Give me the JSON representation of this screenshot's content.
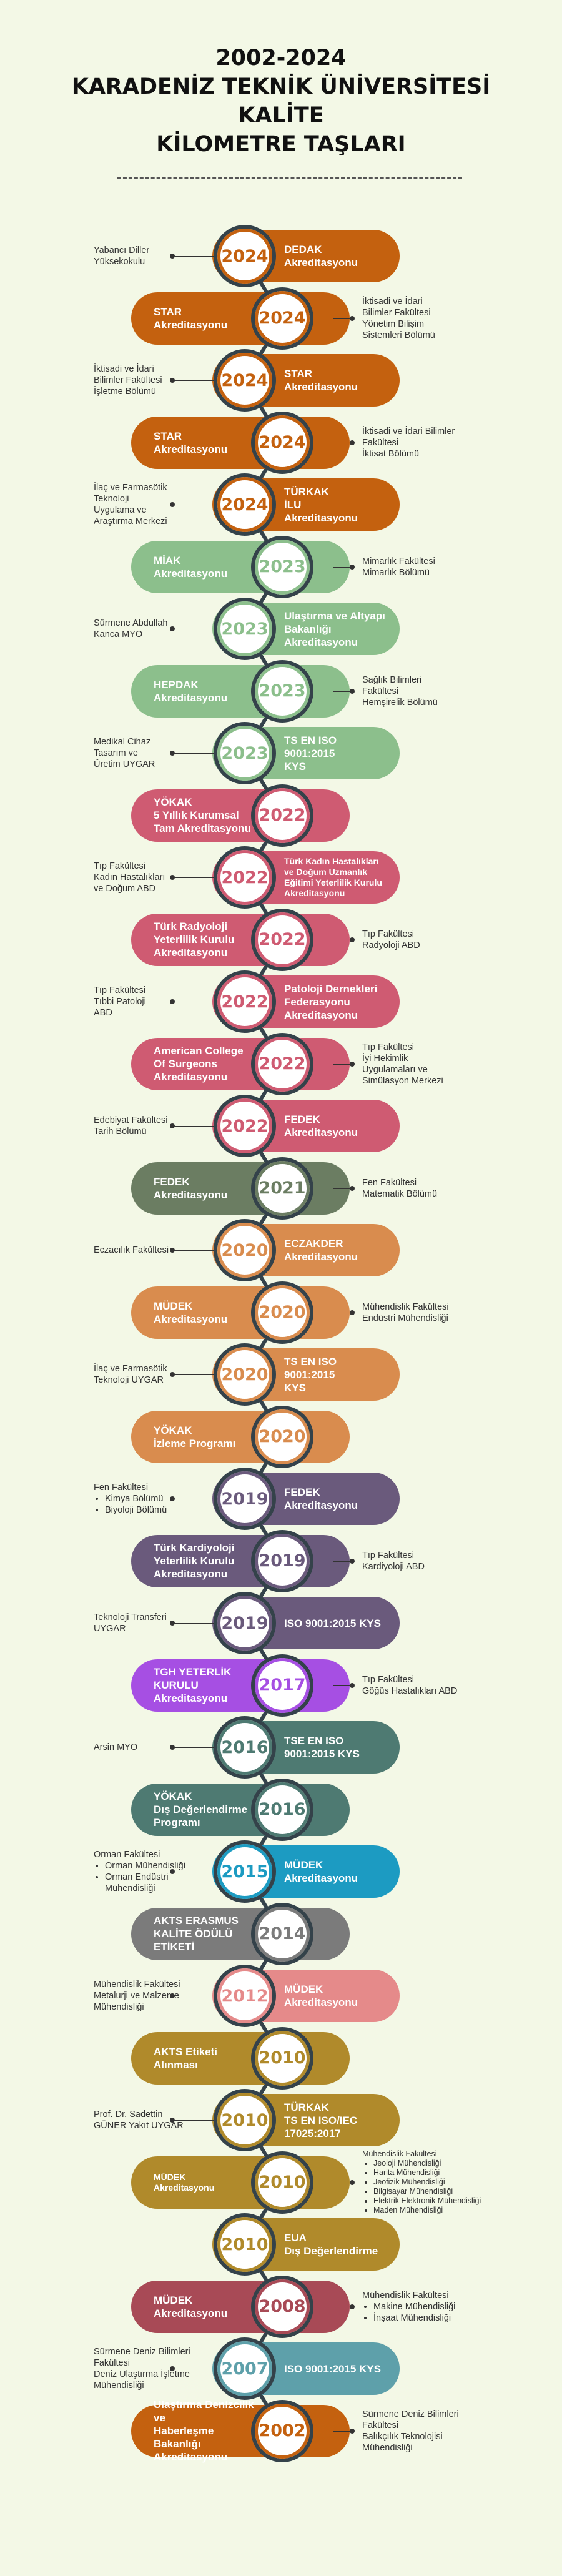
{
  "title": {
    "line1": "2002-2024",
    "line2": "KARADENİZ TEKNİK ÜNİVERSİTESİ",
    "line3": "KALİTE",
    "line4": "KİLOMETRE TAŞLARI"
  },
  "entries": [
    {
      "side": "right",
      "year": "2024",
      "label": "DEDAK\nAkreditasyonu",
      "color": "#c4610f",
      "desc": [
        "Yabancı Diller",
        "Yüksekokulu"
      ],
      "list": []
    },
    {
      "side": "left",
      "year": "2024",
      "label": "STAR\nAkreditasyonu",
      "color": "#c4610f",
      "desc": [
        "İktisadi ve İdari",
        "Bilimler Fakültesi",
        "Yönetim Bilişim",
        "Sistemleri Bölümü"
      ],
      "list": []
    },
    {
      "side": "right",
      "year": "2024",
      "label": "STAR\nAkreditasyonu",
      "color": "#c4610f",
      "desc": [
        "İktisadi ve İdari",
        "Bilimler Fakültesi",
        "İşletme Bölümü"
      ],
      "list": []
    },
    {
      "side": "left",
      "year": "2024",
      "label": "STAR\nAkreditasyonu",
      "color": "#c4610f",
      "desc": [
        "İktisadi ve İdari Bilimler",
        "Fakültesi",
        "İktisat Bölümü"
      ],
      "list": []
    },
    {
      "side": "right",
      "year": "2024",
      "label": "TÜRKAK\nİLU\nAkreditasyonu",
      "color": "#c4610f",
      "desc": [
        "İlaç ve Farmasötik",
        "Teknoloji",
        "Uygulama ve",
        "Araştırma Merkezi"
      ],
      "list": []
    },
    {
      "side": "left",
      "year": "2023",
      "label": "MİAK\nAkreditasyonu",
      "color": "#8cbf8c",
      "desc": [
        "Mimarlık Fakültesi",
        "Mimarlık Bölümü"
      ],
      "list": []
    },
    {
      "side": "right",
      "year": "2023",
      "label": "Ulaştırma ve Altyapı\nBakanlığı\nAkreditasyonu",
      "color": "#8cbf8c",
      "desc": [
        "Sürmene Abdullah",
        "Kanca MYO"
      ],
      "list": []
    },
    {
      "side": "left",
      "year": "2023",
      "label": "HEPDAK\nAkreditasyonu",
      "color": "#8cbf8c",
      "desc": [
        "Sağlık Bilimleri",
        "Fakültesi",
        "Hemşirelik Bölümü"
      ],
      "list": []
    },
    {
      "side": "right",
      "year": "2023",
      "label": "TS EN ISO 9001:2015\nKYS",
      "color": "#8cbf8c",
      "desc": [
        "Medikal Cihaz",
        "Tasarım ve",
        "Üretim UYGAR"
      ],
      "list": []
    },
    {
      "side": "left",
      "year": "2022",
      "label": "YÖKAK\n5 Yıllık Kurumsal\nTam Akreditasyonu",
      "color": "#cf5b72",
      "desc": [],
      "list": []
    },
    {
      "side": "right",
      "year": "2022",
      "label": "Türk Kadın Hastalıkları\nve Doğum Uzmanlık\nEğitimi Yeterlilik Kurulu\nAkreditasyonu",
      "color": "#cf5b72",
      "small": true,
      "desc": [
        "Tıp Fakültesi",
        "Kadın Hastalıkları",
        "ve Doğum ABD"
      ],
      "list": []
    },
    {
      "side": "left",
      "year": "2022",
      "label": "Türk Radyoloji\nYeterlilik Kurulu\nAkreditasyonu",
      "color": "#cf5b72",
      "desc": [
        "Tıp Fakültesi",
        "Radyoloji ABD"
      ],
      "list": []
    },
    {
      "side": "right",
      "year": "2022",
      "label": "Patoloji Dernekleri\nFederasyonu\nAkreditasyonu",
      "color": "#cf5b72",
      "desc": [
        "Tıp Fakültesi",
        "Tıbbi Patoloji",
        "ABD"
      ],
      "list": []
    },
    {
      "side": "left",
      "year": "2022",
      "label": "American College\nOf Surgeons\nAkreditasyonu",
      "color": "#cf5b72",
      "desc": [
        "Tıp Fakültesi",
        "İyi Hekimlik",
        "Uygulamaları ve",
        "Simülasyon Merkezi"
      ],
      "list": []
    },
    {
      "side": "right",
      "year": "2022",
      "label": "FEDEK\nAkreditasyonu",
      "color": "#cf5b72",
      "desc": [
        "Edebiyat Fakültesi",
        "Tarih Bölümü"
      ],
      "list": []
    },
    {
      "side": "left",
      "year": "2021",
      "label": "FEDEK\nAkreditasyonu",
      "color": "#6b7d62",
      "desc": [
        "Fen Fakültesi",
        "Matematik Bölümü"
      ],
      "list": []
    },
    {
      "side": "right",
      "year": "2020",
      "label": "ECZAKDER\nAkreditasyonu",
      "color": "#d98c4e",
      "desc": [
        "Eczacılık Fakültesi"
      ],
      "list": []
    },
    {
      "side": "left",
      "year": "2020",
      "label": "MÜDEK\nAkreditasyonu",
      "color": "#d98c4e",
      "desc": [
        "Mühendislik Fakültesi",
        "Endüstri Mühendisliği"
      ],
      "list": []
    },
    {
      "side": "right",
      "year": "2020",
      "label": "TS EN ISO 9001:2015\nKYS",
      "color": "#d98c4e",
      "desc": [
        "İlaç ve Farmasötik",
        "Teknoloji UYGAR"
      ],
      "list": []
    },
    {
      "side": "left",
      "year": "2020",
      "label": "YÖKAK\nİzleme Programı",
      "color": "#d98c4e",
      "desc": [],
      "list": []
    },
    {
      "side": "right",
      "year": "2019",
      "label": "FEDEK\nAkreditasyonu",
      "color": "#6a5a7c",
      "desc": [
        "Fen Fakültesi"
      ],
      "list": [
        "Kimya Bölümü",
        "Biyoloji Bölümü"
      ]
    },
    {
      "side": "left",
      "year": "2019",
      "label": "Türk Kardiyoloji\nYeterlilik Kurulu\nAkreditasyonu",
      "color": "#6a5a7c",
      "desc": [
        "Tıp Fakültesi",
        "Kardiyoloji ABD"
      ],
      "list": []
    },
    {
      "side": "right",
      "year": "2019",
      "label": "ISO 9001:2015 KYS",
      "color": "#6a5a7c",
      "desc": [
        "Teknoloji Transferi",
        "UYGAR"
      ],
      "list": []
    },
    {
      "side": "left",
      "year": "2017",
      "label": "TGH YETERLİK\nKURULU\nAkreditasyonu",
      "color": "#a64fe3",
      "desc": [
        "Tıp Fakültesi",
        "Göğüs Hastalıkları ABD"
      ],
      "list": []
    },
    {
      "side": "right",
      "year": "2016",
      "label": "TSE EN ISO\n9001:2015 KYS",
      "color": "#4e7a72",
      "desc": [
        "Arsin MYO"
      ],
      "list": []
    },
    {
      "side": "left",
      "year": "2016",
      "label": "YÖKAK\nDış Değerlendirme\nProgramı",
      "color": "#4e7a72",
      "desc": [],
      "list": []
    },
    {
      "side": "right",
      "year": "2015",
      "label": "MÜDEK\nAkreditasyonu",
      "color": "#1c9bc2",
      "desc": [
        "Orman Fakültesi"
      ],
      "list": [
        "Orman Mühendisliği",
        "Orman Endüstri Mühendisliği"
      ]
    },
    {
      "side": "left",
      "year": "2014",
      "label": "AKTS ERASMUS\nKALİTE ÖDÜLÜ\nETİKETİ",
      "color": "#7b7b7b",
      "desc": [],
      "list": []
    },
    {
      "side": "right",
      "year": "2012",
      "label": "MÜDEK\nAkreditasyonu",
      "color": "#e58a8a",
      "desc": [
        "Mühendislik Fakültesi",
        "Metalurji ve Malzeme",
        "Mühendisliği"
      ],
      "list": []
    },
    {
      "side": "left",
      "year": "2010",
      "label": "AKTS Etiketi\nAlınması",
      "color": "#b08a2b",
      "desc": [],
      "list": []
    },
    {
      "side": "right",
      "year": "2010",
      "label": "TÜRKAK\nTS EN ISO/IEC\n17025:2017",
      "color": "#b08a2b",
      "desc": [
        "Prof. Dr. Sadettin",
        "GÜNER Yakıt UYGAR"
      ],
      "list": []
    },
    {
      "side": "left",
      "year": "2010",
      "label": "MÜDEK\nAkreditasyonu",
      "color": "#b08a2b",
      "small": true,
      "desc": [
        "Mühendislik Fakültesi"
      ],
      "list": [
        "Jeoloji Mühendisliği",
        "Harita Mühendisliği",
        "Jeofizik Mühendisliği",
        "Bilgisayar Mühendisliği",
        "Elektrik Elektronik Mühendisliği",
        "Maden Mühendisliği"
      ]
    },
    {
      "side": "right",
      "year": "2010",
      "label": "EUA\nDış Değerlendirme",
      "color": "#b08a2b",
      "desc": [],
      "list": []
    },
    {
      "side": "left",
      "year": "2008",
      "label": "MÜDEK\nAkreditasyonu",
      "color": "#a84a56",
      "desc": [
        "Mühendislik Fakültesi"
      ],
      "list": [
        "Makine Mühendisliği",
        "İnşaat Mühendisliği"
      ]
    },
    {
      "side": "right",
      "year": "2007",
      "label": "ISO 9001:2015 KYS",
      "color": "#5ea0aa",
      "desc": [
        "Sürmene Deniz Bilimleri",
        "Fakültesi",
        "Deniz Ulaştırma İşletme",
        "Mühendisliği"
      ],
      "list": []
    },
    {
      "side": "left",
      "year": "2002",
      "label": "Ulaştırma Denizcilik ve\nHaberleşme Bakanlığı\nAkreditasyonu",
      "color": "#c4610f",
      "desc": [
        "Sürmene Deniz Bilimleri",
        "Fakültesi",
        "Balıkçılık Teknolojisi",
        "Mühendisliği"
      ],
      "list": []
    }
  ]
}
